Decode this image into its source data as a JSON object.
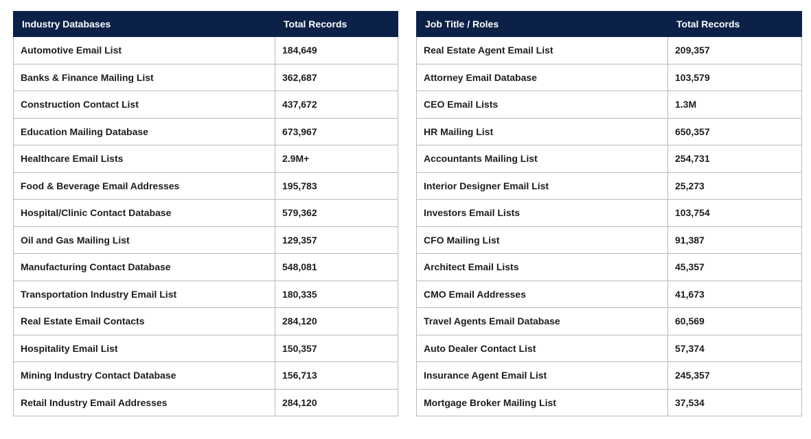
{
  "industry": {
    "headers": [
      "Industry Databases",
      "Total Records"
    ],
    "rows": [
      [
        "Automotive Email List",
        "184,649"
      ],
      [
        "Banks & Finance Mailing List",
        "362,687"
      ],
      [
        "Construction Contact List",
        "437,672"
      ],
      [
        "Education Mailing Database",
        "673,967"
      ],
      [
        "Healthcare Email Lists",
        "2.9M+"
      ],
      [
        "Food & Beverage Email Addresses",
        "195,783"
      ],
      [
        "Hospital/Clinic Contact Database",
        "579,362"
      ],
      [
        "Oil and Gas Mailing List",
        "129,357"
      ],
      [
        "Manufacturing Contact Database",
        "548,081"
      ],
      [
        "Transportation Industry Email List",
        "180,335"
      ],
      [
        "Real Estate Email Contacts",
        "284,120"
      ],
      [
        "Hospitality Email List",
        "150,357"
      ],
      [
        "Mining Industry Contact Database",
        "156,713"
      ],
      [
        "Retail Industry Email Addresses",
        "284,120"
      ]
    ]
  },
  "roles": {
    "headers": [
      "Job Title / Roles",
      "Total Records"
    ],
    "rows": [
      [
        "Real Estate Agent Email List",
        "209,357"
      ],
      [
        "Attorney Email Database",
        "103,579"
      ],
      [
        "CEO Email Lists",
        "1.3M"
      ],
      [
        "HR Mailing List",
        "650,357"
      ],
      [
        "Accountants Mailing List",
        "254,731"
      ],
      [
        "Interior Designer Email List",
        "25,273"
      ],
      [
        "Investors Email Lists",
        "103,754"
      ],
      [
        "CFO Mailing List",
        "91,387"
      ],
      [
        "Architect Email Lists",
        "45,357"
      ],
      [
        "CMO Email Addresses",
        "41,673"
      ],
      [
        "Travel Agents Email Database",
        "60,569"
      ],
      [
        "Auto Dealer Contact List",
        "57,374"
      ],
      [
        "Insurance Agent Email List",
        "245,357"
      ],
      [
        "Mortgage Broker Mailing List",
        "37,534"
      ]
    ]
  },
  "colors": {
    "header_bg": "#0c2148",
    "header_text": "#ffffff",
    "border": "#b9b9b9",
    "cell_text": "#1c1c1c"
  }
}
